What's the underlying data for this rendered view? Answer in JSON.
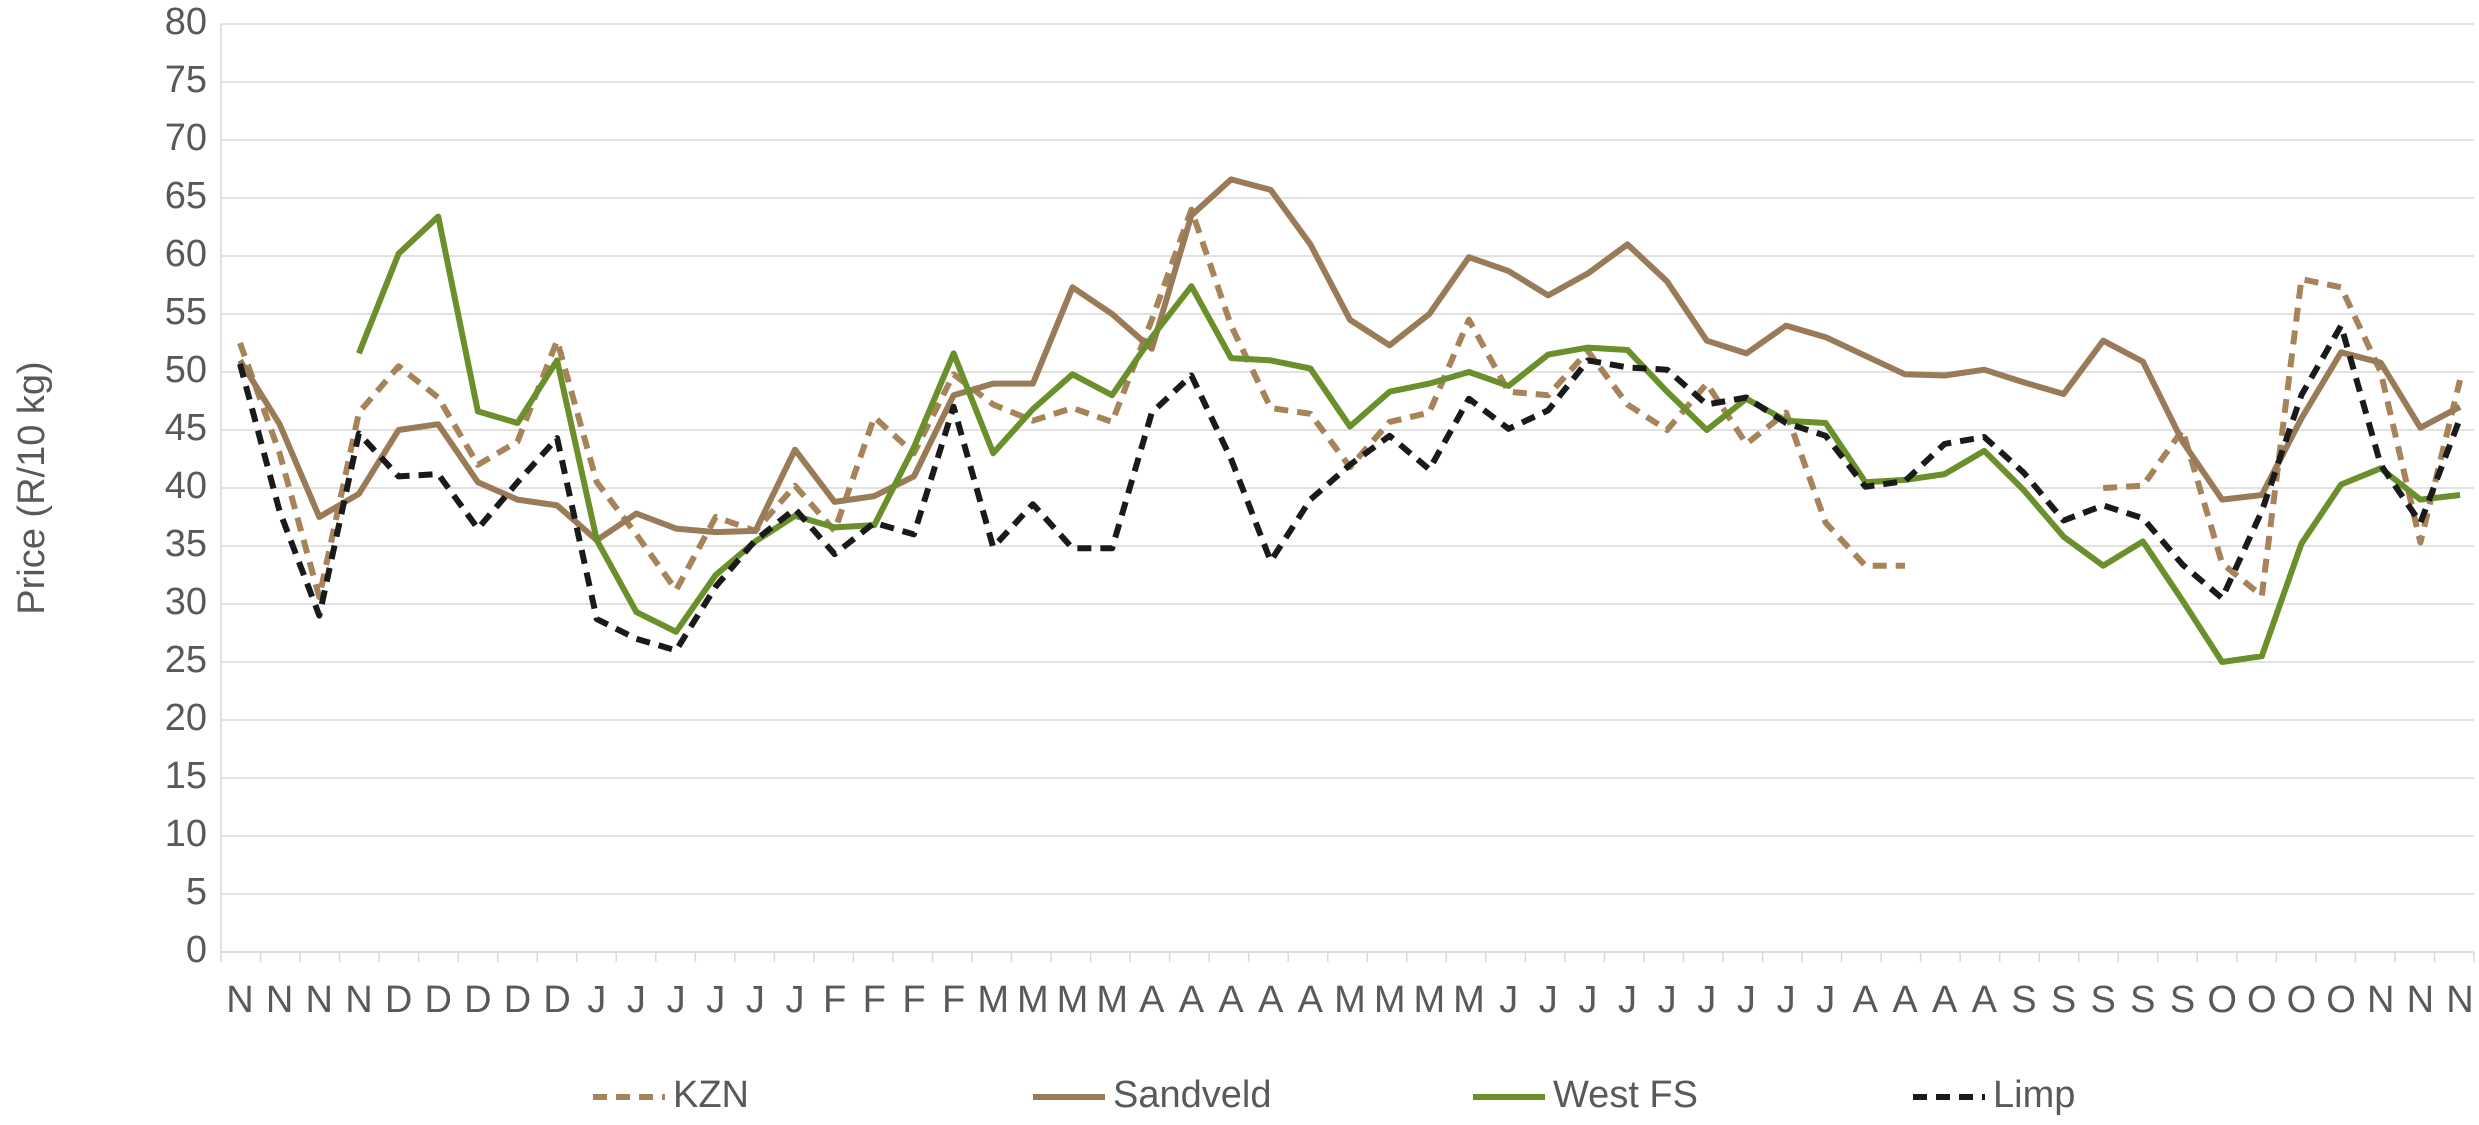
{
  "chart_data": {
    "type": "line",
    "y_label": "Price (R/10 kg)",
    "categories": [
      "N",
      "N",
      "N",
      "N",
      "D",
      "D",
      "D",
      "D",
      "D",
      "J",
      "J",
      "J",
      "J",
      "J",
      "J",
      "F",
      "F",
      "F",
      "F",
      "M",
      "M",
      "M",
      "M",
      "A",
      "A",
      "A",
      "A",
      "A",
      "M",
      "M",
      "M",
      "M",
      "J",
      "J",
      "J",
      "J",
      "J",
      "J",
      "J",
      "J",
      "J",
      "A",
      "A",
      "A",
      "A",
      "S",
      "S",
      "S",
      "S",
      "S",
      "O",
      "O",
      "O",
      "O",
      "N",
      "N",
      "N"
    ],
    "ylim": [
      0,
      80
    ],
    "yticks": [
      0,
      5,
      10,
      15,
      20,
      25,
      30,
      35,
      40,
      45,
      50,
      55,
      60,
      65,
      70,
      75,
      80
    ],
    "grid": true,
    "legend": "bottom",
    "series": [
      {
        "name": "KZN",
        "color": "#a68358",
        "style": "dashed",
        "values": [
          52.5,
          43,
          30.6,
          46.5,
          50.5,
          47.8,
          42,
          44,
          52.7,
          40.5,
          36,
          31.2,
          37.5,
          36.3,
          40.2,
          36.3,
          46.1,
          43,
          49.8,
          47.2,
          45.8,
          46.9,
          45.7,
          54.5,
          64,
          54,
          46.9,
          46.4,
          41.8,
          45.7,
          46.5,
          54.5,
          48.3,
          48,
          51.8,
          47.2,
          45,
          49,
          43.8,
          46.5,
          37,
          33.3,
          33.3,
          null,
          null,
          null,
          null,
          40,
          40.2,
          45,
          33.5,
          30.7,
          58,
          57.3,
          50,
          35.3,
          49.3
        ]
      },
      {
        "name": "Sandveld",
        "color": "#9a7b58",
        "style": "solid",
        "values": [
          51,
          45.5,
          37.5,
          39.5,
          45,
          45.5,
          40.5,
          39,
          38.5,
          35.5,
          37.8,
          36.5,
          36.2,
          36.3,
          43.3,
          38.8,
          39.3,
          41,
          48,
          49,
          49,
          57.3,
          55,
          52,
          63.5,
          66.6,
          65.7,
          61,
          54.5,
          52.3,
          55,
          59.9,
          58.7,
          56.6,
          58.5,
          61,
          57.8,
          52.7,
          51.6,
          54,
          53,
          51.4,
          49.8,
          49.7,
          50.2,
          49.1,
          48.1,
          52.7,
          50.9,
          44,
          39,
          39.4,
          46,
          51.7,
          50.8,
          45.2,
          47
        ]
      },
      {
        "name": "West FS",
        "color": "#6b8f2a",
        "style": "solid",
        "values": [
          null,
          null,
          null,
          51.6,
          60.2,
          63.4,
          46.6,
          45.6,
          51,
          35.5,
          29.3,
          27.6,
          32.5,
          35.4,
          37.6,
          36.6,
          36.8,
          43.5,
          51.6,
          43,
          46.8,
          49.8,
          48,
          53,
          57.4,
          51.2,
          51,
          50.3,
          45.3,
          48.3,
          49,
          50,
          48.8,
          51.5,
          52.1,
          51.9,
          48.3,
          45,
          47.7,
          45.8,
          45.6,
          40.5,
          40.7,
          41.2,
          43.2,
          39.8,
          35.8,
          33.3,
          35.4,
          30.3,
          25,
          25.5,
          35.2,
          40.3,
          41.7,
          39,
          39.4
        ]
      },
      {
        "name": "Limp",
        "color": "#1a1a1a",
        "style": "dashed",
        "values": [
          50.7,
          38,
          29,
          44.7,
          41,
          41.2,
          36.5,
          40.5,
          44.3,
          28.7,
          27,
          26,
          31.5,
          35.5,
          38.2,
          34.3,
          37,
          36,
          47,
          34.9,
          38.6,
          34.8,
          34.8,
          46.5,
          49.7,
          42.5,
          33.7,
          39,
          42,
          44.5,
          41.6,
          47.7,
          45.1,
          46.7,
          51,
          50.4,
          50.2,
          47.2,
          47.8,
          45.6,
          44.5,
          40.1,
          40.6,
          43.8,
          44.4,
          41.3,
          37.2,
          38.5,
          37.4,
          33.4,
          30.5,
          38,
          48,
          54,
          42,
          37,
          46
        ]
      }
    ]
  }
}
